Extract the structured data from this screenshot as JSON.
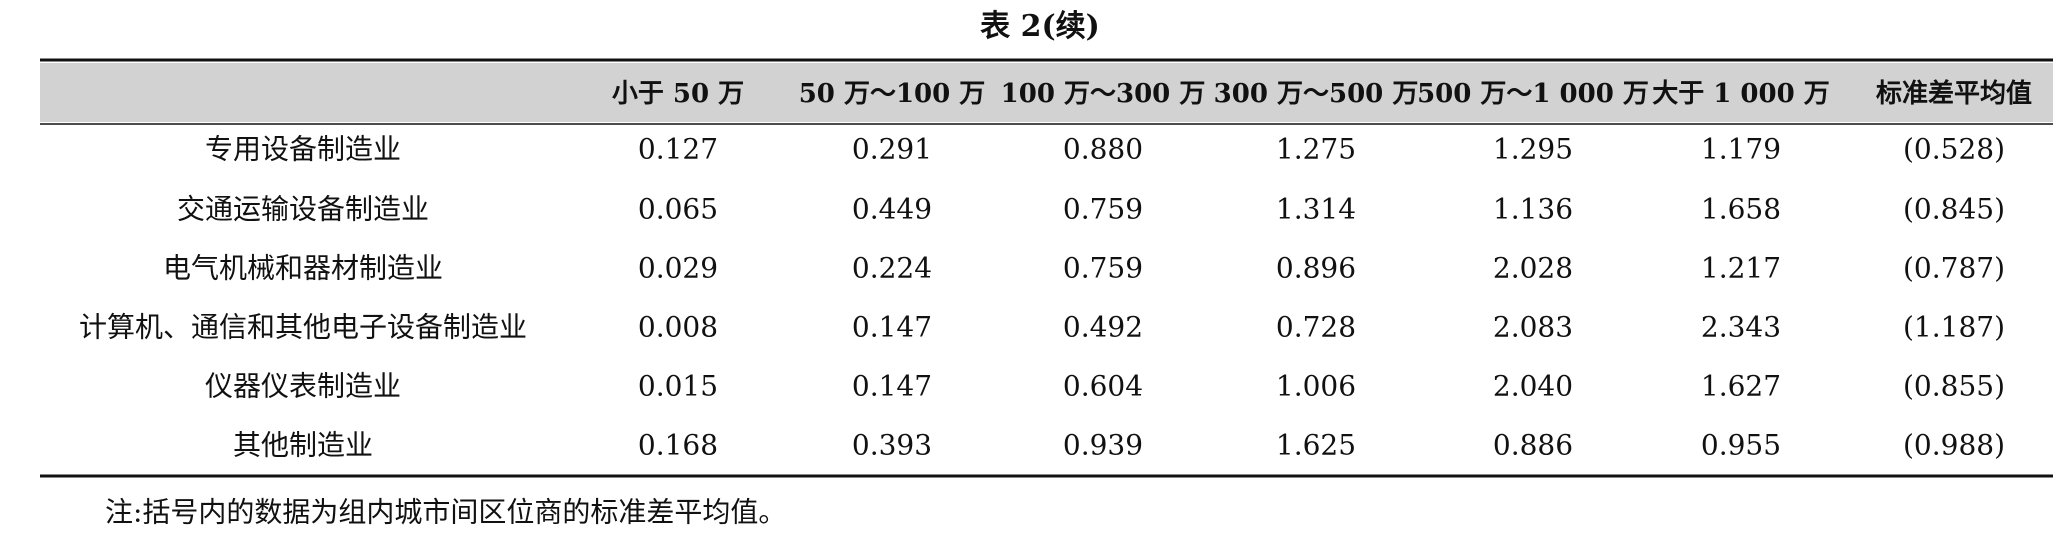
{
  "title": "表 2(续)",
  "table": {
    "header": [
      "小于 50 万",
      "50 万～100 万",
      "100 万～300 万",
      "300 万～500 万",
      "500 万～1 000 万",
      "大于 1 000 万",
      "标准差平均值"
    ],
    "rows": [
      [
        "专用设备制造业",
        "0.127",
        "0.291",
        "0.880",
        "1.275",
        "1.295",
        "1.179",
        "(0.528)"
      ],
      [
        "交通运输设备制造业",
        "0.065",
        "0.449",
        "0.759",
        "1.314",
        "1.136",
        "1.658",
        "(0.845)"
      ],
      [
        "电气机械和器材制造业",
        "0.029",
        "0.224",
        "0.759",
        "0.896",
        "2.028",
        "1.217",
        "(0.787)"
      ],
      [
        "计算机、通信和其他电子设备制造业",
        "0.008",
        "0.147",
        "0.492",
        "0.728",
        "2.083",
        "2.343",
        "(1.187)"
      ],
      [
        "仪器仪表制造业",
        "0.015",
        "0.147",
        "0.604",
        "1.006",
        "2.040",
        "1.627",
        "(0.855)"
      ],
      [
        "其他制造业",
        "0.168",
        "0.393",
        "0.939",
        "1.625",
        "0.886",
        "0.955",
        "(0.988)"
      ]
    ]
  },
  "note": "注:括号内的数据为组内城市间区位商的标准差平均值。"
}
